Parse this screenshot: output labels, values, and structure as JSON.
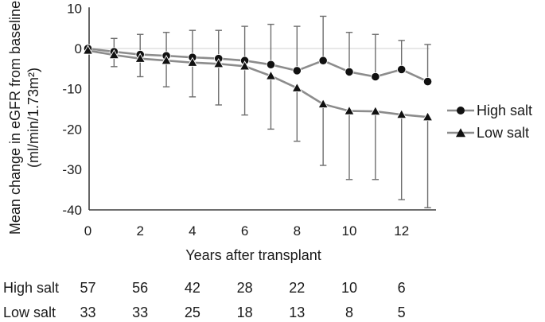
{
  "chart_data": {
    "type": "line",
    "title": "",
    "xlabel": "Years after transplant",
    "ylabel_line1": "Mean change in eGFR from baseline",
    "ylabel_line2": "(ml/min/1.73m²)",
    "x": [
      0,
      1,
      2,
      3,
      4,
      5,
      6,
      7,
      8,
      9,
      10,
      11,
      12,
      13
    ],
    "series": [
      {
        "name": "High salt",
        "marker": "circle",
        "values": [
          0,
          -0.8,
          -1.5,
          -1.8,
          -2.2,
          -2.5,
          -3,
          -4,
          -5.5,
          -3,
          -5.8,
          -7,
          -5.2,
          -8.2
        ],
        "error_cap_upper": [
          null,
          2.5,
          3.5,
          4,
          4.5,
          4.5,
          5.5,
          6,
          5.5,
          8,
          4,
          3.5,
          2,
          1
        ]
      },
      {
        "name": "Low salt",
        "marker": "triangle",
        "values": [
          -0.5,
          -1.6,
          -2.5,
          -3,
          -3.5,
          -3.8,
          -4.4,
          -6.8,
          -9.8,
          -13.8,
          -15.5,
          -15.6,
          -16.4,
          -17
        ],
        "error_cap_lower": [
          null,
          -4.5,
          -7,
          -9.5,
          -12,
          -14,
          -16.5,
          -20,
          -23,
          -29,
          -32.5,
          -32.5,
          -37.5,
          -39.5
        ]
      }
    ],
    "y_ticks": {
      "labels": [
        "10",
        "0",
        "-10",
        "-20",
        "-30",
        "-40"
      ],
      "values": [
        10,
        0,
        -10,
        -20,
        -30,
        -40
      ]
    },
    "x_ticks": {
      "labels": [
        "0",
        "2",
        "4",
        "6",
        "8",
        "10",
        "12"
      ],
      "values": [
        0,
        2,
        4,
        6,
        8,
        10,
        12
      ]
    },
    "ylim": [
      -40,
      10
    ],
    "xlim": [
      0,
      13.4
    ],
    "grid": "zero-line-only",
    "legend_position": "right-middle",
    "colors": {
      "line": "#8c8c8c",
      "error": "#6e6e6e",
      "marker": "#111111",
      "zero_gridline": "#d9d9d9",
      "axis": "#3f3f3f",
      "text": "#1a1a1a"
    }
  },
  "risk_table": {
    "rows": [
      {
        "label": "High salt",
        "values": [
          "57",
          "56",
          "42",
          "28",
          "22",
          "10",
          "6"
        ]
      },
      {
        "label": "Low salt",
        "values": [
          "33",
          "33",
          "25",
          "18",
          "13",
          "8",
          "5"
        ]
      }
    ]
  }
}
